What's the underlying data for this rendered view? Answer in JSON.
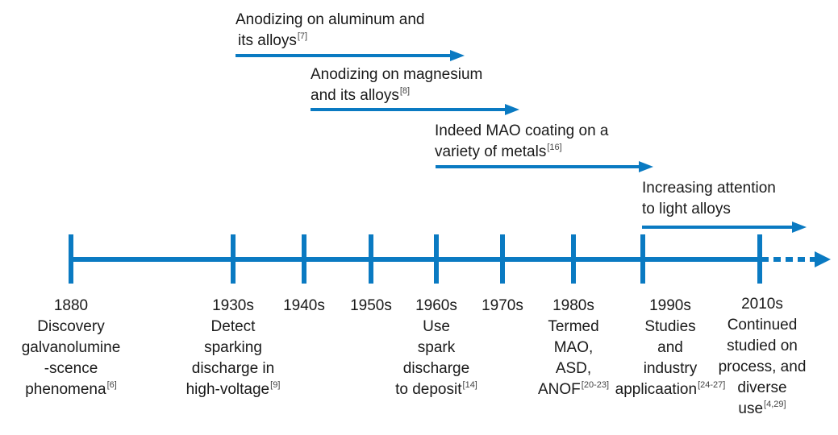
{
  "colors": {
    "timeline": "#0a7ac2",
    "text": "#1a1a1a"
  },
  "periods": [
    {
      "text": "Anodizing on aluminum and",
      "text2": "its alloys",
      "ref": "[7]"
    },
    {
      "text": "Anodizing on magnesium",
      "text2": "and its alloys",
      "ref": "[8]"
    },
    {
      "text": "Indeed MAO coating on a",
      "text2": "variety of metals",
      "ref": "[16]"
    },
    {
      "text": "Increasing attention",
      "text2": "to light alloys",
      "ref": ""
    }
  ],
  "eras": [
    {
      "year": "1880",
      "lines": [
        "Discovery",
        "galvanolumine",
        "-scence",
        "phenomena"
      ],
      "ref": "[6]"
    },
    {
      "year": "1930s",
      "lines": [
        "Detect",
        "sparking",
        "discharge in",
        "high-voltage"
      ],
      "ref": "[9]"
    },
    {
      "year": "1940s",
      "lines": [],
      "ref": ""
    },
    {
      "year": "1950s",
      "lines": [],
      "ref": ""
    },
    {
      "year": "1960s",
      "lines": [
        "Use",
        "spark",
        "discharge",
        "to deposit"
      ],
      "ref": "[14]"
    },
    {
      "year": "1970s",
      "lines": [],
      "ref": ""
    },
    {
      "year": "1980s",
      "lines": [
        "Termed",
        "MAO,",
        "ASD,",
        "ANOF"
      ],
      "ref": "[20-23]"
    },
    {
      "year": "1990s",
      "lines": [
        "Studies",
        "and",
        "industry",
        "applicaation"
      ],
      "ref": "[24-27]"
    },
    {
      "year": "2010s",
      "lines": [
        "Continued",
        "studied on",
        "process, and",
        "diverse",
        "use"
      ],
      "ref": "[4,29]"
    }
  ]
}
